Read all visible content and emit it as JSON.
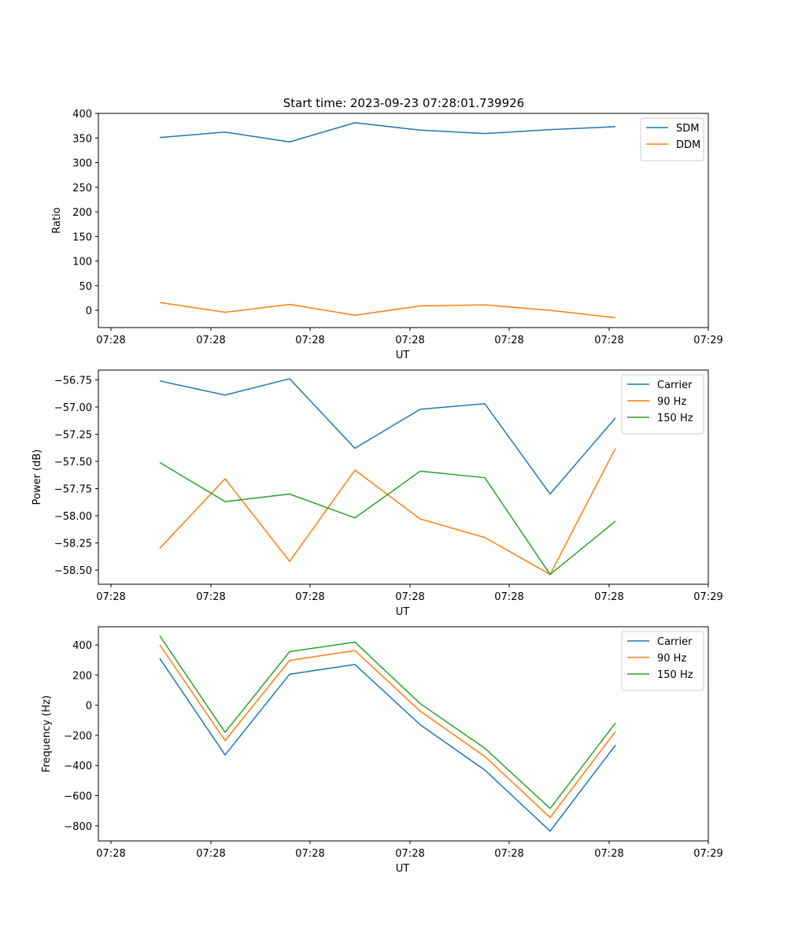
{
  "title": "Start time: 2023-09-23 07:28:01.739926",
  "colors": {
    "blue": "#1f77b4",
    "orange": "#ff7f0e",
    "green": "#2ca02c"
  },
  "chart_data": [
    {
      "type": "line",
      "xlabel": "UT",
      "ylabel": "Ratio",
      "x_tick_labels": [
        "07:28",
        "07:28",
        "07:28",
        "07:28",
        "07:28",
        "07:28",
        "07:29"
      ],
      "ylim": [
        -35,
        400
      ],
      "y_ticks": [
        0,
        50,
        100,
        150,
        200,
        250,
        300,
        350,
        400
      ],
      "y_tick_labels": [
        "0",
        "50",
        "100",
        "150",
        "200",
        "250",
        "300",
        "350",
        "400"
      ],
      "legend_position": "upper right",
      "series": [
        {
          "name": "SDM",
          "color": "#1f77b4",
          "values": [
            351,
            362,
            342,
            381,
            366,
            359,
            367,
            373
          ]
        },
        {
          "name": "DDM",
          "color": "#ff7f0e",
          "values": [
            16,
            -4,
            12,
            -10,
            9,
            11,
            0,
            -15
          ]
        }
      ]
    },
    {
      "type": "line",
      "xlabel": "UT",
      "ylabel": "Power (dB)",
      "x_tick_labels": [
        "07:28",
        "07:28",
        "07:28",
        "07:28",
        "07:28",
        "07:28",
        "07:29"
      ],
      "ylim": [
        -58.63,
        -56.66
      ],
      "y_ticks": [
        -58.5,
        -58.25,
        -58.0,
        -57.75,
        -57.5,
        -57.25,
        -57.0,
        -56.75
      ],
      "y_tick_labels": [
        "−58.50",
        "−58.25",
        "−58.00",
        "−57.75",
        "−57.50",
        "−57.25",
        "−57.00",
        "−56.75"
      ],
      "legend_position": "upper right",
      "series": [
        {
          "name": "Carrier",
          "color": "#1f77b4",
          "values": [
            -56.76,
            -56.89,
            -56.74,
            -57.38,
            -57.02,
            -56.97,
            -57.8,
            -57.1
          ]
        },
        {
          "name": "90 Hz",
          "color": "#ff7f0e",
          "values": [
            -58.3,
            -57.66,
            -58.42,
            -57.58,
            -58.03,
            -58.2,
            -58.54,
            -57.38
          ]
        },
        {
          "name": "150 Hz",
          "color": "#2ca02c",
          "values": [
            -57.51,
            -57.87,
            -57.8,
            -58.02,
            -57.59,
            -57.65,
            -58.54,
            -58.05
          ]
        }
      ]
    },
    {
      "type": "line",
      "xlabel": "UT",
      "ylabel": "Frequency (Hz)",
      "x_tick_labels": [
        "07:28",
        "07:28",
        "07:28",
        "07:28",
        "07:28",
        "07:28",
        "07:29"
      ],
      "ylim": [
        -900,
        520
      ],
      "y_ticks": [
        -800,
        -600,
        -400,
        -200,
        0,
        200,
        400
      ],
      "y_tick_labels": [
        "−800",
        "−600",
        "−400",
        "−200",
        "0",
        "200",
        "400"
      ],
      "legend_position": "upper right",
      "series": [
        {
          "name": "Carrier",
          "color": "#1f77b4",
          "values": [
            310,
            -330,
            205,
            270,
            -130,
            -430,
            -835,
            -265
          ]
        },
        {
          "name": "90 Hz",
          "color": "#ff7f0e",
          "values": [
            400,
            -235,
            297,
            362,
            -40,
            -340,
            -745,
            -175
          ]
        },
        {
          "name": "150 Hz",
          "color": "#2ca02c",
          "values": [
            460,
            -180,
            355,
            418,
            10,
            -285,
            -685,
            -118
          ]
        }
      ]
    }
  ]
}
